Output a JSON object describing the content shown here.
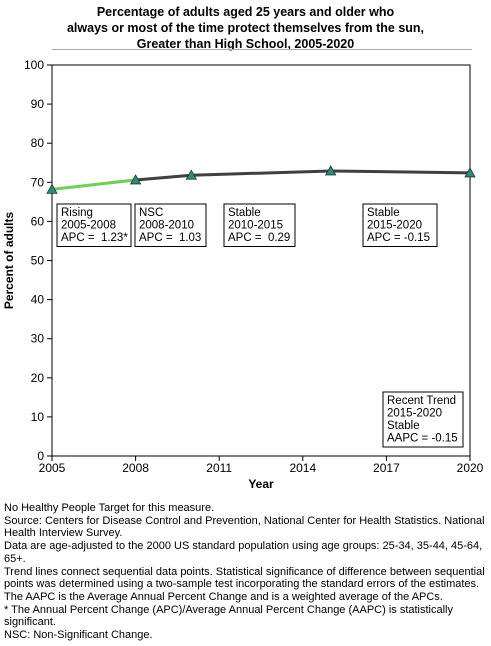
{
  "chart_data": {
    "type": "line",
    "title": [
      "Percentage of adults aged 25 years and older who",
      "always or most of the time protect themselves from the sun,",
      "Greater than High School,  2005-2020"
    ],
    "xlabel": "Year",
    "ylabel": "Percent of adults",
    "xlim": [
      2005,
      2020
    ],
    "ylim": [
      0,
      100
    ],
    "xticks": [
      "2005",
      "2008",
      "2011",
      "2014",
      "2017",
      "2020"
    ],
    "yticks": [
      "0",
      "10",
      "20",
      "30",
      "40",
      "50",
      "60",
      "70",
      "80",
      "90",
      "100"
    ],
    "points": [
      {
        "x": 2005,
        "y": 68.2
      },
      {
        "x": 2008,
        "y": 70.6
      },
      {
        "x": 2010,
        "y": 71.8
      },
      {
        "x": 2015,
        "y": 72.9
      },
      {
        "x": 2020,
        "y": 72.4
      }
    ],
    "segments": [
      {
        "from": 2005,
        "to": 2008,
        "color": "#6fcf5a",
        "lines": [
          "Rising",
          "2005-2008",
          "APC =  1.23*"
        ]
      },
      {
        "from": 2008,
        "to": 2010,
        "color": "#404040",
        "lines": [
          "NSC",
          "2008-2010",
          "APC =  1.03"
        ]
      },
      {
        "from": 2010,
        "to": 2015,
        "color": "#404040",
        "lines": [
          "Stable",
          "2010-2015",
          "APC =  0.29"
        ]
      },
      {
        "from": 2015,
        "to": 2020,
        "color": "#404040",
        "lines": [
          "Stable",
          "2015-2020",
          "APC = -0.15"
        ]
      }
    ],
    "recent_trend": [
      "Recent Trend",
      "2015-2020",
      "Stable",
      "AAPC = -0.15"
    ],
    "marker_color": "#2e8b7a",
    "grid": false
  },
  "notes": [
    "No Healthy People Target for this measure.",
    "Source: Centers for Disease Control and Prevention, National Center for Health Statistics. National Health Interview Survey.",
    "Data are age-adjusted to the 2000 US standard population using age groups: 25-34, 35-44, 45-64, 65+.",
    "Trend lines connect sequential data points. Statistical significance of difference between sequential points was determined using a two-sample test incorporating the standard errors of the estimates.",
    "The AAPC is the Average Annual Percent Change and is a weighted average of the APCs.",
    "* The Annual Percent Change (APC)/Average Annual Percent Change (AAPC) is statistically significant.",
    "NSC: Non-Significant Change."
  ]
}
